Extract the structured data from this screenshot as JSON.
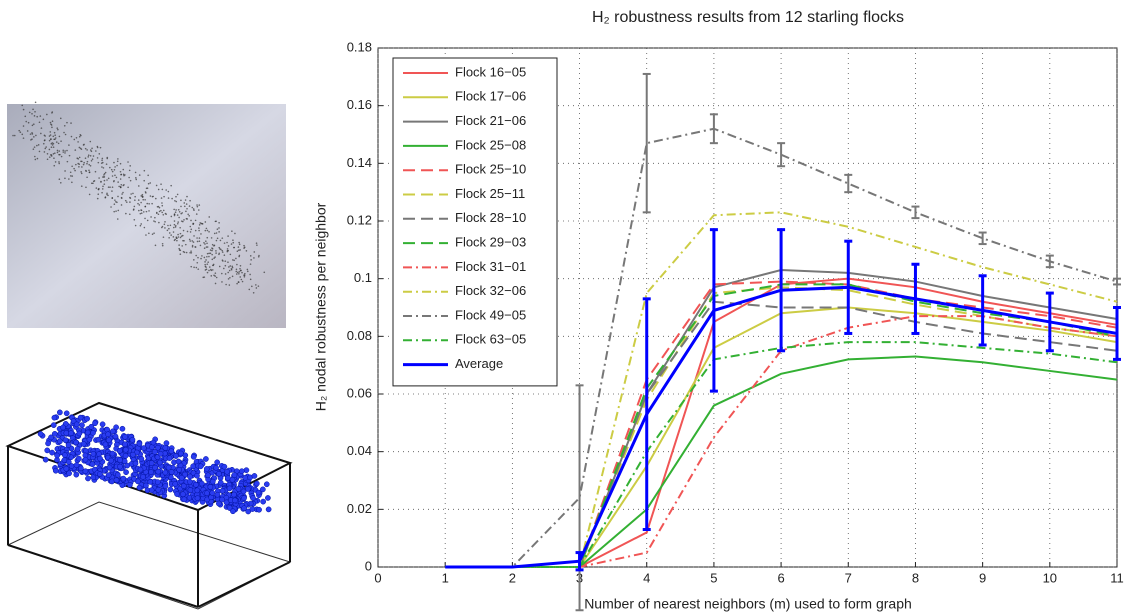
{
  "chart_data": {
    "type": "line",
    "title": "H₂ robustness results from 12 starling flocks",
    "x_label": "Number of nearest neighbors (m) used to form graph",
    "y_label": "H₂ nodal robustness per neighbor",
    "x": [
      1,
      2,
      3,
      4,
      5,
      6,
      7,
      8,
      9,
      10,
      11
    ],
    "xlim": [
      0,
      11
    ],
    "xticks": [
      0,
      1,
      2,
      3,
      4,
      5,
      6,
      7,
      8,
      9,
      10,
      11
    ],
    "ylim": [
      0,
      0.18
    ],
    "yticks": [
      0,
      0.02,
      0.04,
      0.06,
      0.08,
      0.1,
      0.12,
      0.14,
      0.16,
      0.18
    ],
    "grid": true,
    "legend": "upper left",
    "series": [
      {
        "name": "Flock 16−05",
        "color": "#f05555",
        "style": "solid",
        "values": [
          0,
          0,
          0,
          0.012,
          0.085,
          0.098,
          0.1,
          0.097,
          0.092,
          0.088,
          0.084
        ]
      },
      {
        "name": "Flock 17−06",
        "color": "#cccc44",
        "style": "solid",
        "values": [
          0,
          0,
          0,
          0.035,
          0.076,
          0.088,
          0.09,
          0.088,
          0.085,
          0.082,
          0.078
        ]
      },
      {
        "name": "Flock 21−06",
        "color": "#777777",
        "style": "solid",
        "values": [
          0,
          0,
          0,
          0.06,
          0.097,
          0.103,
          0.102,
          0.099,
          0.094,
          0.09,
          0.086
        ]
      },
      {
        "name": "Flock 25−08",
        "color": "#33b033",
        "style": "solid",
        "values": [
          0,
          0,
          0,
          0.02,
          0.056,
          0.067,
          0.072,
          0.073,
          0.071,
          0.068,
          0.065
        ]
      },
      {
        "name": "Flock 25−10",
        "color": "#f05555",
        "style": "dashed",
        "values": [
          0,
          0,
          0,
          0.065,
          0.098,
          0.099,
          0.098,
          0.093,
          0.09,
          0.087,
          0.083
        ]
      },
      {
        "name": "Flock 25−11",
        "color": "#cccc44",
        "style": "dashed",
        "values": [
          0,
          0,
          0,
          0.058,
          0.095,
          0.097,
          0.096,
          0.091,
          0.087,
          0.083,
          0.08
        ]
      },
      {
        "name": "Flock 28−10",
        "color": "#777777",
        "style": "dashed",
        "values": [
          0,
          0,
          0,
          0.06,
          0.092,
          0.09,
          0.09,
          0.085,
          0.081,
          0.078,
          0.075
        ]
      },
      {
        "name": "Flock 29−03",
        "color": "#33b033",
        "style": "dashed",
        "values": [
          0,
          0,
          0,
          0.062,
          0.094,
          0.098,
          0.098,
          0.092,
          0.088,
          0.085,
          0.08
        ]
      },
      {
        "name": "Flock 31−01",
        "color": "#f05555",
        "style": "dashdot",
        "values": [
          0,
          0,
          0,
          0.005,
          0.045,
          0.075,
          0.083,
          0.087,
          0.087,
          0.083,
          0.08
        ]
      },
      {
        "name": "Flock 32−06",
        "color": "#cccc44",
        "style": "dashdot",
        "values": [
          0,
          0,
          0,
          0.095,
          0.122,
          0.123,
          0.118,
          0.111,
          0.104,
          0.098,
          0.092
        ]
      },
      {
        "name": "Flock 49−05",
        "color": "#777777",
        "style": "dashdot",
        "values": [
          0,
          0,
          0.024,
          0.147,
          0.152,
          0.143,
          0.133,
          0.123,
          0.114,
          0.106,
          0.099
        ],
        "errors": [
          null,
          null,
          0.039,
          0.024,
          0.005,
          0.004,
          0.003,
          0.002,
          0.002,
          0.002,
          0.001
        ]
      },
      {
        "name": "Flock 63−05",
        "color": "#33b033",
        "style": "dashdot",
        "values": [
          0,
          0,
          0,
          0.04,
          0.072,
          0.076,
          0.078,
          0.078,
          0.076,
          0.074,
          0.071
        ]
      },
      {
        "name": "Average",
        "color": "#0000ff",
        "style": "solid",
        "width": 3,
        "values": [
          0,
          0,
          0.002,
          0.053,
          0.089,
          0.096,
          0.097,
          0.093,
          0.089,
          0.085,
          0.081
        ],
        "errors": [
          null,
          null,
          0.003,
          0.04,
          0.028,
          0.021,
          0.016,
          0.012,
          0.012,
          0.01,
          0.009
        ]
      }
    ]
  }
}
